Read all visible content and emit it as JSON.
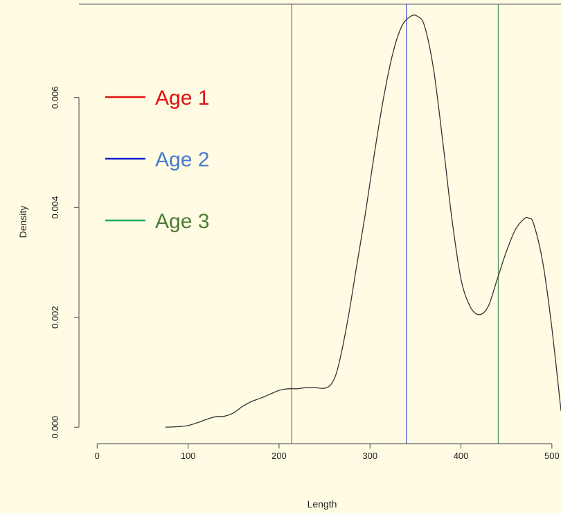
{
  "chart_data": {
    "type": "line",
    "title": "",
    "xlabel": "Length",
    "ylabel": "Density",
    "xlim": [
      -20,
      510
    ],
    "ylim": [
      -0.0003,
      0.0077
    ],
    "x_ticks": [
      0,
      100,
      200,
      300,
      400,
      500
    ],
    "x_tick_labels": [
      "0",
      "100",
      "200",
      "300",
      "400",
      "500"
    ],
    "y_ticks": [
      0.0,
      0.002,
      0.004,
      0.006
    ],
    "y_tick_labels": [
      "0.000",
      "0.002",
      "0.004",
      "0.006"
    ],
    "grid": false,
    "legend_position": "top-left",
    "colors": {
      "background": "#FFFCE3",
      "curve": "#333333",
      "axis": "#444444"
    },
    "series": [
      {
        "x": [
          75,
          90,
          100,
          110,
          120,
          130,
          140,
          150,
          160,
          170,
          180,
          190,
          200,
          210,
          220,
          230,
          240,
          250,
          258,
          265,
          275,
          285,
          295,
          305,
          315,
          325,
          335,
          345,
          352,
          360,
          370,
          380,
          390,
          400,
          410,
          420,
          430,
          440,
          450,
          460,
          470,
          475,
          480,
          490,
          500,
          510
        ],
        "y": [
          0.0,
          1e-05,
          3e-05,
          8e-05,
          0.00014,
          0.00019,
          0.0002,
          0.00026,
          0.00038,
          0.00047,
          0.00053,
          0.0006,
          0.00067,
          0.0007,
          0.0007,
          0.00072,
          0.00072,
          0.00071,
          0.0008,
          0.0011,
          0.0019,
          0.0029,
          0.0039,
          0.005,
          0.006,
          0.0068,
          0.0073,
          0.00748,
          0.00748,
          0.0073,
          0.0065,
          0.0052,
          0.0038,
          0.0027,
          0.0022,
          0.00205,
          0.0022,
          0.0027,
          0.0032,
          0.0036,
          0.0038,
          0.0038,
          0.0037,
          0.003,
          0.0018,
          0.0003
        ]
      }
    ],
    "vertical_lines": [
      {
        "name": "Age 1",
        "x": 214,
        "color": "#E8323A"
      },
      {
        "name": "Age 2",
        "x": 340,
        "color": "#3A50E0"
      },
      {
        "name": "Age 3",
        "x": 441,
        "color": "#4F8F5A"
      }
    ],
    "legend": [
      {
        "label": "Age 1",
        "line_color": "#E01010",
        "text_color": "#E01010"
      },
      {
        "label": "Age 2",
        "line_color": "#1020D0",
        "text_color": "#4878CF"
      },
      {
        "label": "Age 3",
        "line_color": "#16A860",
        "text_color": "#4E7A35"
      }
    ]
  }
}
